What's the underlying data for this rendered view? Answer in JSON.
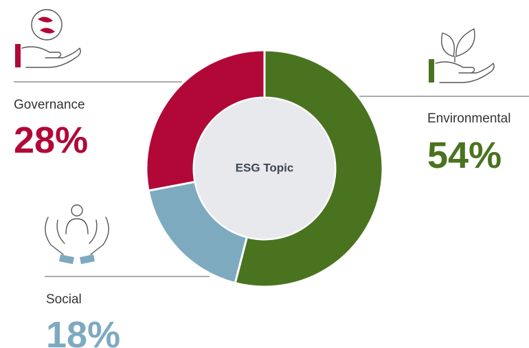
{
  "chart_data": {
    "type": "donut",
    "center_label": "ESG Topic",
    "categories": [
      "Environmental",
      "Social",
      "Governance"
    ],
    "values": [
      54,
      18,
      28
    ],
    "value_labels": [
      "54%",
      "18%",
      "28%"
    ],
    "colors": [
      "#4a7320",
      "#7eaac0",
      "#b20838"
    ]
  }
}
